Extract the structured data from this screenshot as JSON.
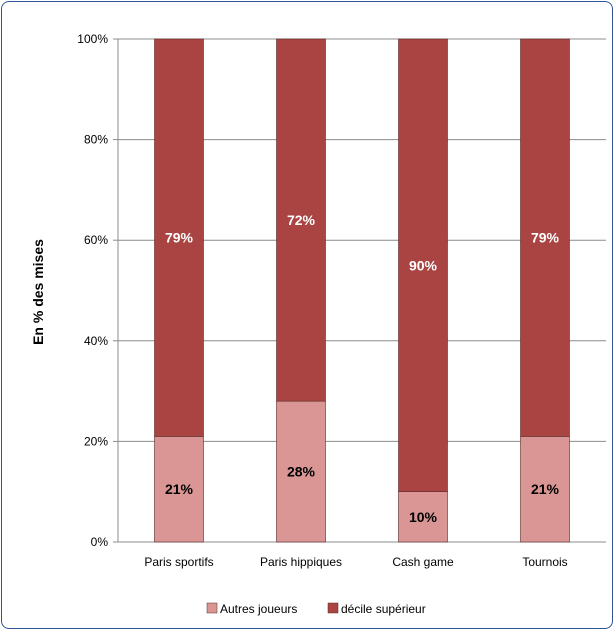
{
  "chart_data": {
    "type": "bar",
    "stacked": true,
    "percent_stacked": true,
    "categories": [
      "Paris sportifs",
      "Paris hippiques",
      "Cash game",
      "Tournois"
    ],
    "series": [
      {
        "name": "Autres joueurs",
        "values": [
          21,
          28,
          10,
          21
        ],
        "labels": [
          "21%",
          "28%",
          "10%",
          "21%"
        ],
        "color": "#d99694"
      },
      {
        "name": "décile supérieur",
        "values": [
          79,
          72,
          90,
          79
        ],
        "labels": [
          "79%",
          "72%",
          "90%",
          "79%"
        ],
        "color": "#a94442"
      }
    ],
    "ylabel": "En % des mises",
    "yticks": [
      "0%",
      "20%",
      "40%",
      "60%",
      "80%",
      "100%"
    ],
    "ylim": [
      0,
      100
    ],
    "grid": true,
    "legend": "bottom"
  }
}
